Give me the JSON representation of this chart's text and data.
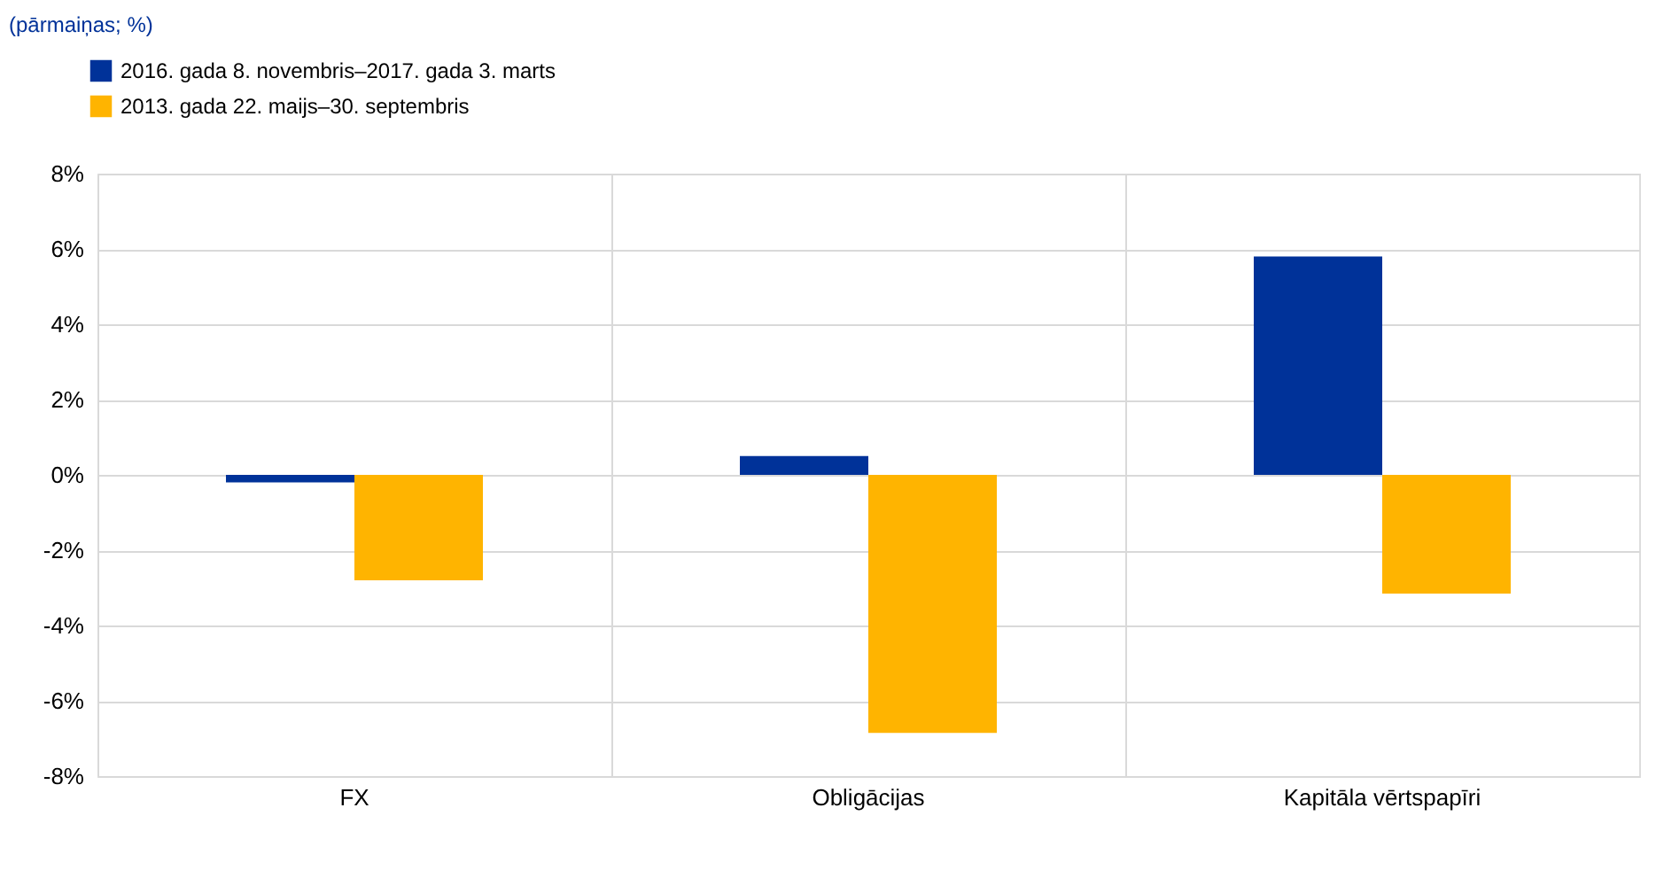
{
  "chart_data": {
    "type": "bar",
    "title": "(pārmaiņas; %)",
    "categories": [
      "FX",
      "Obligācijas",
      "Kapitāla vērtspapīri"
    ],
    "series": [
      {
        "name": "2016. gada 8. novembris–2017. gada 3. marts",
        "color": "#003299",
        "values": [
          -0.2,
          0.5,
          5.8
        ]
      },
      {
        "name": "2013. gada 22. maijs–30. septembris",
        "color": "#ffb400",
        "values": [
          -2.8,
          -6.85,
          -3.15
        ]
      }
    ],
    "ylim": [
      -8,
      8
    ],
    "yticks": [
      {
        "value": -8,
        "label": "-8%"
      },
      {
        "value": -6,
        "label": "-6%"
      },
      {
        "value": -4,
        "label": "-4%"
      },
      {
        "value": -2,
        "label": "-2%"
      },
      {
        "value": 0,
        "label": "0%"
      },
      {
        "value": 2,
        "label": "2%"
      },
      {
        "value": 4,
        "label": "4%"
      },
      {
        "value": 6,
        "label": "6%"
      },
      {
        "value": 8,
        "label": "8%"
      }
    ],
    "grid": true,
    "legend": "top left"
  }
}
